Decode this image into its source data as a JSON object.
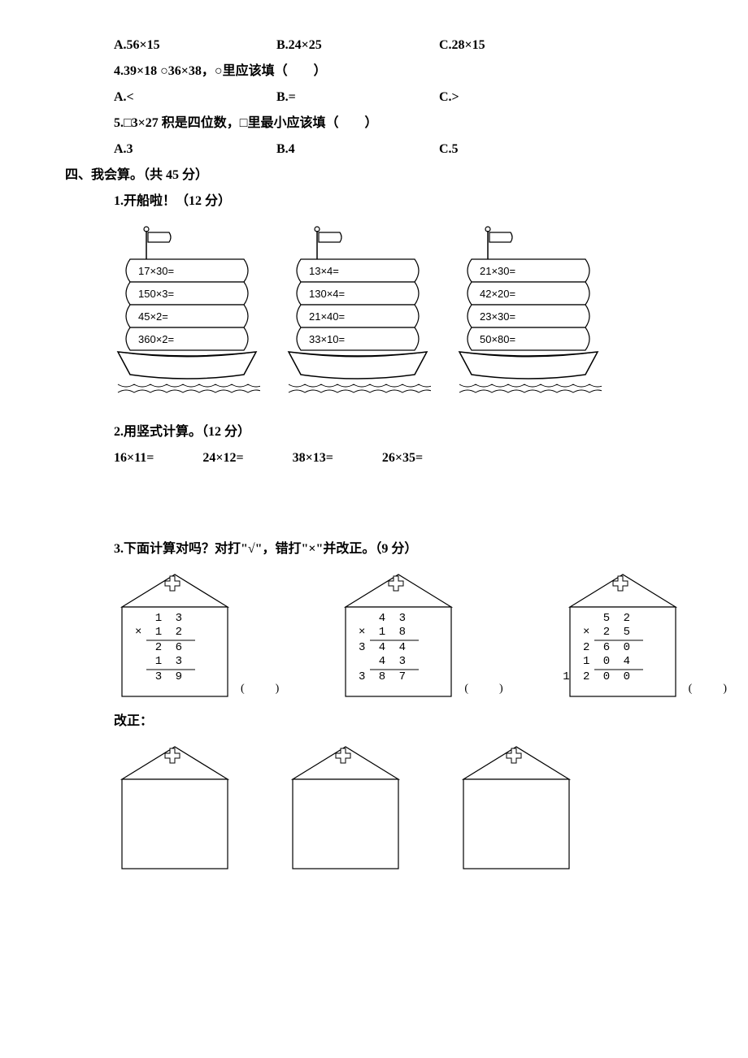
{
  "q3_options": {
    "A": "A.56×15",
    "B": "B.24×25",
    "C": "C.28×15"
  },
  "q4": {
    "text": "4.39×18 ○36×38，○里应该填（　　）",
    "A": "A.<",
    "B": "B.=",
    "C": "C.>"
  },
  "q5": {
    "text": "5.□3×27 积是四位数，□里最小应该填（　　）",
    "A": "A.3",
    "B": "B.4",
    "C": "C.5"
  },
  "section4": "四、我会算。（共 45 分）",
  "p1": {
    "title": "1.开船啦！（12 分）",
    "ship1": [
      "17×30=",
      "150×3=",
      "45×2=",
      "360×2="
    ],
    "ship2": [
      "13×4=",
      "130×4=",
      "21×40=",
      "33×10="
    ],
    "ship3": [
      "21×30=",
      "42×20=",
      "23×30=",
      "50×80="
    ]
  },
  "p2": {
    "title": "2.用竖式计算。（12 分）",
    "items": [
      "16×11=",
      "24×12=",
      "38×13=",
      "26×35="
    ]
  },
  "p3": {
    "title": "3.下面计算对吗？对打\"√\"，错打\"×\"并改正。（9 分）",
    "gaizheng": "改正：",
    "h1": {
      "a": "1 3",
      "b": "× 1 2",
      "c": "2 6",
      "d": "1 3",
      "e": "3 9"
    },
    "h2": {
      "a": "4 3",
      "b": "× 1 8",
      "c": "3 4 4",
      "d": "4 3",
      "e": "3 8 7"
    },
    "h3": {
      "a": "5 2",
      "b": "× 2 5",
      "c": "2 6 0",
      "d": "1 0 4",
      "e": "1 2 0 0"
    }
  },
  "style": {
    "stroke": "#000000",
    "sail_fill": "#ffffff",
    "font_exp": 13
  }
}
